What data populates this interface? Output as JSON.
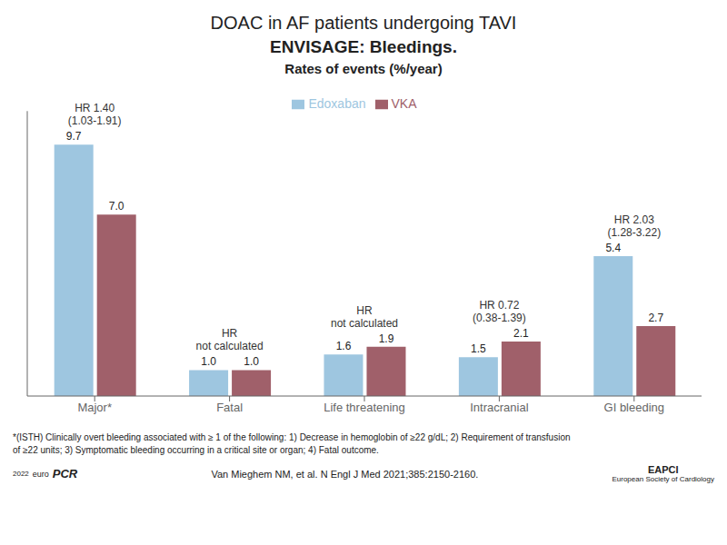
{
  "chart_data": {
    "type": "bar",
    "title": "DOAC in AF patients undergoing TAVI",
    "subtitle": [
      "ENVISAGE: Bleedings.",
      "Rates of events (%/year)"
    ],
    "categories": [
      "Major*",
      "Fatal",
      "Life threatening",
      "Intracranial",
      "GI bleeding"
    ],
    "series": [
      {
        "name": "Edoxaban",
        "color": "#9ec6e0",
        "values": [
          9.7,
          1.0,
          1.6,
          1.5,
          5.4
        ],
        "value_labels": [
          "9.7",
          "1.0",
          "1.6",
          "1.5",
          "5.4"
        ]
      },
      {
        "name": "VKA",
        "color": "#a0606a",
        "values": [
          7.0,
          1.0,
          1.9,
          2.1,
          2.7
        ],
        "value_labels": [
          "7.0",
          "1.0",
          "1.9",
          "2.1",
          "2.7"
        ]
      }
    ],
    "ylim": [
      0,
      11
    ],
    "data_labels": true,
    "tick_labels": "x",
    "legend": "top",
    "grid": false,
    "annotations": [
      {
        "category": "Major*",
        "text": "HR 1.40\n(1.03-1.91)"
      },
      {
        "category": "Fatal",
        "text": "HR\nnot calculated"
      },
      {
        "category": "Life threatening",
        "text": "HR\nnot calculated"
      },
      {
        "category": "Intracranial",
        "text": "HR 0.72\n(0.38-1.39)"
      },
      {
        "category": "GI bleeding",
        "text": "HR 2.03\n(1.28-3.22)"
      }
    ],
    "footnotes": [
      "*(ISTH) Clinically overt bleeding associated with ≥ 1 of the following: 1) Decrease in hemoglobin of ≥22 g/dL;  2) Requirement of transfusion",
      "of ≥22 units; 3) Symptomatic bleeding occurring in a critical site or organ; 4) Fatal outcome.",
      "Van Mieghem NM, et al. N Engl J Med 2021;385:2150-2160."
    ],
    "footer": [
      "2022",
      "euro",
      "PCR",
      "EAPCI",
      "European Society of Cardiology"
    ]
  }
}
